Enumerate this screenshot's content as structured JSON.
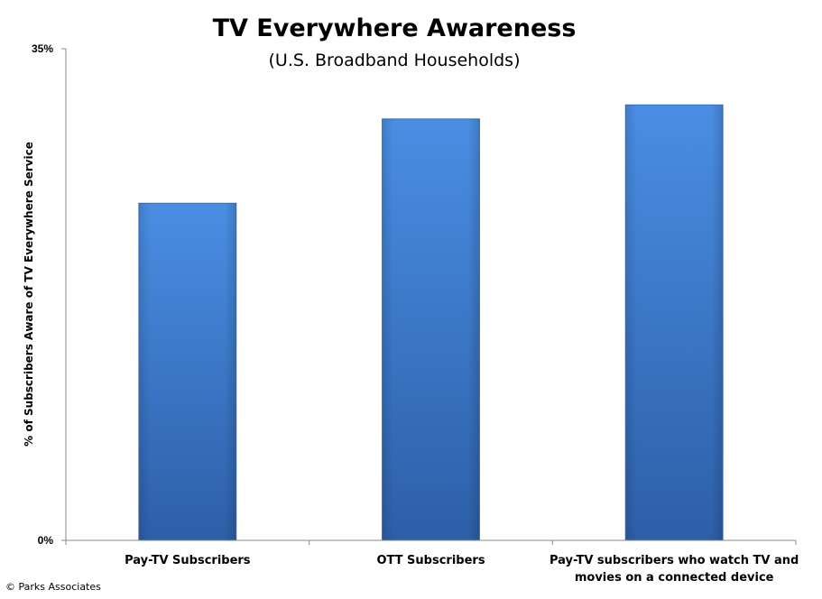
{
  "chart_data": {
    "type": "bar",
    "title": "TV Everywhere Awareness",
    "subtitle": "(U.S. Broadband Households)",
    "ylabel": "% of Subscribers  Aware of TV Everywhere Service",
    "xlabel": "",
    "ylim": [
      0,
      35
    ],
    "ytick_labels": [
      "0%",
      "35%"
    ],
    "categories": [
      [
        "Pay-TV Subscribers"
      ],
      [
        "OTT Subscribers"
      ],
      [
        "Pay-TV subscribers who watch TV and",
        "movies on a connected device"
      ]
    ],
    "values": [
      24,
      30,
      31
    ],
    "bar_color_top": "#4a8ee3",
    "bar_color_bottom": "#2d5fa8",
    "grid": false,
    "legend": "none"
  },
  "footer": {
    "credit": "© Parks Associates"
  }
}
